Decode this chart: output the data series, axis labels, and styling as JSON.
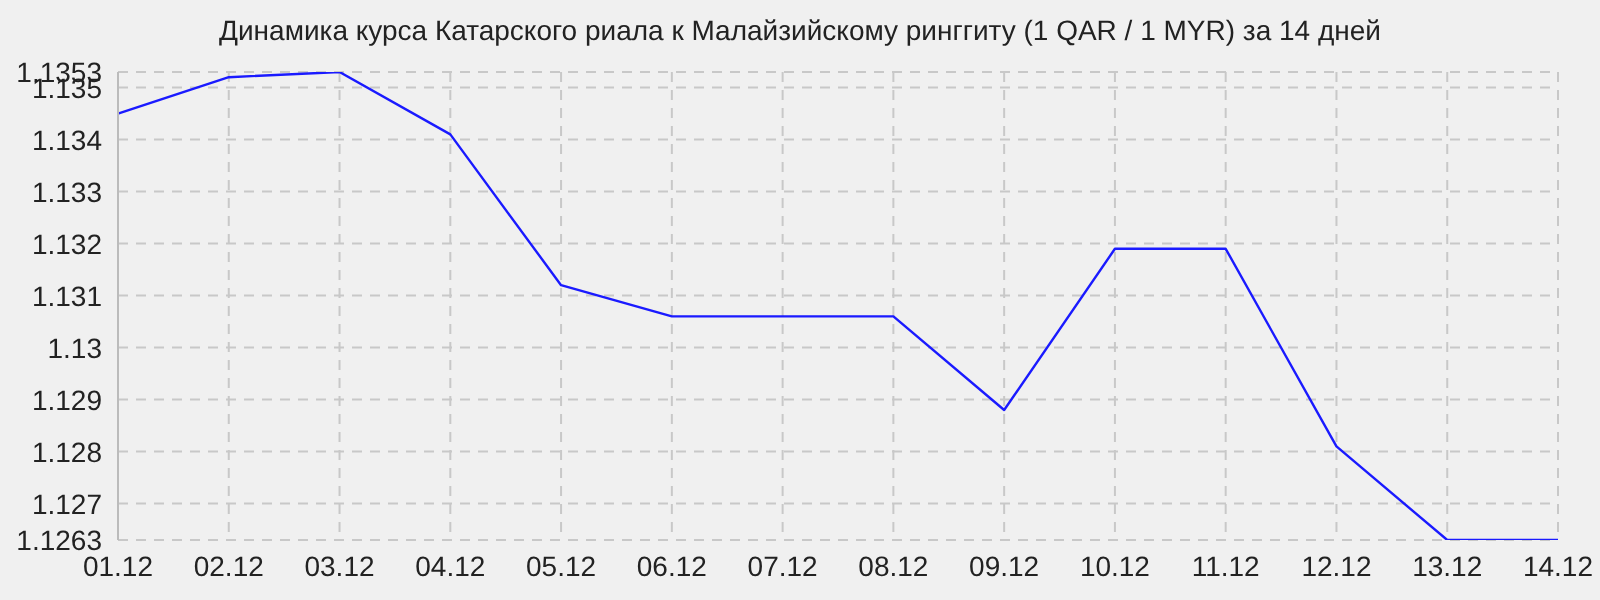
{
  "chart_data": {
    "type": "line",
    "title": "Динамика курса Катарского риала к Малайзийскому ринггиту (1 QAR / 1 MYR) за 14 дней",
    "categories": [
      "01.12",
      "02.12",
      "03.12",
      "04.12",
      "05.12",
      "06.12",
      "07.12",
      "08.12",
      "09.12",
      "10.12",
      "11.12",
      "12.12",
      "13.12",
      "14.12"
    ],
    "series": [
      {
        "color": "#1a1aff",
        "values": [
          1.1345,
          1.1352,
          1.1353,
          1.1341,
          1.1312,
          1.1306,
          1.1306,
          1.1306,
          1.1288,
          1.1319,
          1.1319,
          1.1281,
          1.1263,
          1.1263
        ]
      }
    ],
    "ylim": [
      1.1263,
      1.1353
    ],
    "yticks": [
      1.1263,
      1.127,
      1.128,
      1.129,
      1.13,
      1.131,
      1.132,
      1.133,
      1.134,
      1.135,
      1.1353
    ],
    "grid": true,
    "legend": false,
    "marker": "none",
    "line_style": "solid"
  }
}
